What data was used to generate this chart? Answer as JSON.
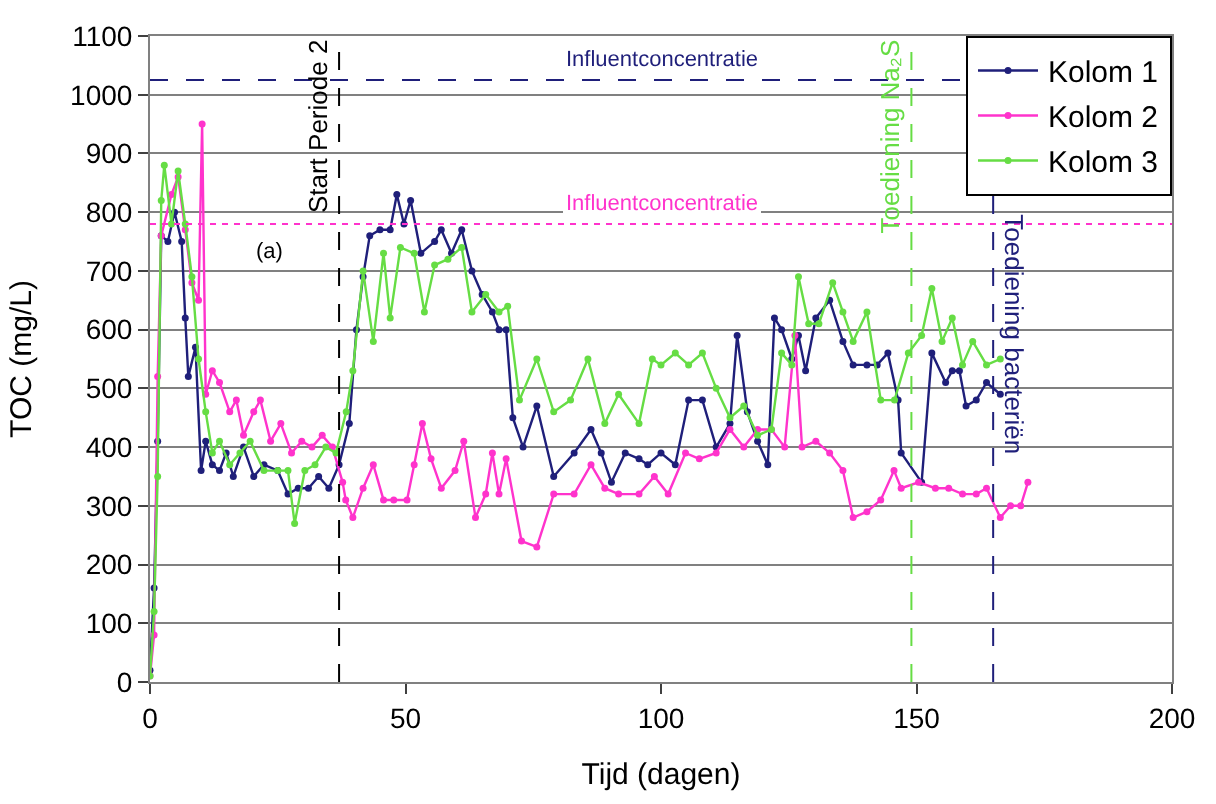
{
  "chart_data": {
    "type": "line",
    "xlabel": "Tijd (dagen)",
    "ylabel": "TOC (mg/L)",
    "xlim": [
      0,
      200
    ],
    "xticks": [
      0,
      50,
      100,
      150,
      200
    ],
    "ylim": [
      0,
      1100
    ],
    "yticks": [
      0,
      100,
      200,
      300,
      400,
      500,
      600,
      700,
      800,
      900,
      1000,
      1100
    ],
    "grid": "y",
    "legend": "top right",
    "marker": "circle",
    "line_style": "solid",
    "series": [
      {
        "name": "Kolom 1",
        "color": "#1f1f7a",
        "x": [
          0,
          0.8,
          1.5,
          2.2,
          3.5,
          4.8,
          6.2,
          6.9,
          7.5,
          8.9,
          10,
          10.9,
          12.2,
          13.6,
          14.9,
          16.3,
          18.3,
          20.3,
          22.3,
          25,
          27,
          29,
          31,
          33,
          35,
          37,
          39,
          40.4,
          41.7,
          43,
          45,
          47,
          48.3,
          49.7,
          51,
          53,
          55.7,
          57,
          59,
          61,
          63,
          65,
          67,
          68.3,
          69.7,
          71,
          73,
          75.7,
          79,
          83,
          86.3,
          88.3,
          90.3,
          93,
          95.7,
          97.4,
          100,
          102.8,
          105.4,
          108.1,
          110.8,
          113.5,
          114.9,
          116.9,
          118.9,
          120.9,
          122.2,
          123.6,
          125.6,
          126.9,
          128.3,
          130.3,
          133,
          135.6,
          137.6,
          140.3,
          142.3,
          144.4,
          146.4,
          147,
          151,
          153,
          155.7,
          157,
          158.4,
          159.7,
          161.7,
          163.7,
          166.4
        ],
        "values": [
          20,
          160,
          410,
          760,
          750,
          800,
          750,
          620,
          520,
          570,
          360,
          410,
          370,
          360,
          390,
          350,
          400,
          350,
          370,
          360,
          320,
          330,
          330,
          350,
          330,
          370,
          440,
          600,
          690,
          760,
          770,
          770,
          830,
          780,
          820,
          730,
          750,
          770,
          730,
          770,
          700,
          660,
          630,
          600,
          600,
          450,
          400,
          470,
          350,
          390,
          430,
          390,
          340,
          390,
          380,
          370,
          390,
          370,
          480,
          480,
          400,
          440,
          590,
          460,
          410,
          370,
          620,
          600,
          550,
          590,
          530,
          620,
          650,
          580,
          540,
          540,
          540,
          560,
          480,
          390,
          340,
          560,
          510,
          530,
          530,
          470,
          480,
          510,
          490
        ]
      },
      {
        "name": "Kolom 2",
        "color": "#ff33cc",
        "x": [
          0,
          0.8,
          1.5,
          2.2,
          4.2,
          5.5,
          6.9,
          8.2,
          9.5,
          10.2,
          10.9,
          12.2,
          13.6,
          15.6,
          16.9,
          18.3,
          20.3,
          21.6,
          23.6,
          25.6,
          27.7,
          29.7,
          31.7,
          33.7,
          35.7,
          37.7,
          38.3,
          39.7,
          41.7,
          43.7,
          45.7,
          47.7,
          50.3,
          51.7,
          53.3,
          55,
          57,
          59.7,
          61.4,
          63.7,
          65.7,
          67,
          68.3,
          69.7,
          72.7,
          75.7,
          79,
          83,
          86.3,
          89,
          91.7,
          95.7,
          98.7,
          101.4,
          104.8,
          107.5,
          110.8,
          113.5,
          116.2,
          118.9,
          121.6,
          124.2,
          126.2,
          127.6,
          130.3,
          133,
          135.6,
          137.6,
          140.3,
          143,
          145.6,
          147,
          150.4,
          153.7,
          156.3,
          159,
          161.7,
          163.7,
          166.4,
          168.4,
          170.4,
          171.8
        ],
        "values": [
          10,
          80,
          520,
          760,
          830,
          860,
          770,
          680,
          650,
          950,
          490,
          530,
          510,
          460,
          480,
          420,
          460,
          480,
          410,
          440,
          390,
          410,
          400,
          420,
          400,
          340,
          310,
          280,
          330,
          370,
          310,
          310,
          310,
          370,
          440,
          380,
          330,
          360,
          410,
          280,
          320,
          390,
          320,
          380,
          240,
          230,
          320,
          320,
          370,
          330,
          320,
          320,
          350,
          320,
          390,
          380,
          390,
          430,
          400,
          430,
          430,
          400,
          590,
          400,
          410,
          390,
          360,
          280,
          290,
          310,
          360,
          330,
          340,
          330,
          330,
          320,
          320,
          330,
          280,
          300,
          300,
          340
        ]
      },
      {
        "name": "Kolom 3",
        "color": "#66dd44",
        "x": [
          0,
          0.8,
          1.5,
          2.2,
          2.8,
          4.2,
          5.5,
          6.9,
          8.2,
          9.5,
          10.9,
          12.2,
          13.6,
          15.6,
          17.6,
          19.6,
          22.3,
          25,
          27,
          28.3,
          30.3,
          32.3,
          34.4,
          36.4,
          38.4,
          39.7,
          41.7,
          43.7,
          45.7,
          47,
          49,
          51.7,
          53.7,
          55.7,
          58.3,
          61,
          63,
          65.7,
          68.3,
          70,
          72.3,
          75.7,
          79,
          82.3,
          85.7,
          89,
          91.7,
          95.7,
          98.3,
          100,
          102.8,
          105.4,
          108.1,
          110.8,
          113.5,
          116.2,
          118.9,
          121.6,
          123.6,
          125.6,
          126.9,
          128.9,
          130.9,
          133.6,
          135.6,
          137.6,
          140.3,
          143,
          145.7,
          148.4,
          151,
          153,
          155,
          157,
          159,
          161,
          163.7,
          166.4
        ],
        "values": [
          10,
          120,
          350,
          820,
          880,
          780,
          870,
          780,
          690,
          550,
          460,
          390,
          410,
          370,
          390,
          410,
          360,
          360,
          360,
          270,
          360,
          370,
          400,
          390,
          460,
          530,
          700,
          580,
          730,
          620,
          740,
          730,
          630,
          710,
          720,
          740,
          630,
          660,
          630,
          640,
          480,
          550,
          460,
          480,
          550,
          440,
          490,
          440,
          550,
          540,
          560,
          540,
          560,
          500,
          450,
          470,
          420,
          430,
          560,
          540,
          690,
          610,
          610,
          680,
          630,
          580,
          630,
          480,
          480,
          560,
          590,
          670,
          580,
          620,
          540,
          580,
          540,
          550
        ]
      }
    ],
    "ref_lines": [
      {
        "axis": "x",
        "value": 37,
        "label": "Start Periode 2",
        "color": "#000000",
        "line_style": "dashed"
      },
      {
        "axis": "x",
        "value": 149,
        "label": "Toediening Na₂S",
        "color": "#66dd44",
        "line_style": "dashed"
      },
      {
        "axis": "x",
        "value": 165,
        "label": "Toediening bacteriën",
        "color": "#1f1f7a",
        "line_style": "dashed"
      },
      {
        "axis": "y",
        "value": 1025,
        "label": "Influentconcentratie",
        "color": "#1f1f7a",
        "line_style": "dashed"
      },
      {
        "axis": "y",
        "value": 780,
        "label": "Influentconcentratie",
        "color": "#ff33cc",
        "line_style": "dotted"
      }
    ],
    "annotations": [
      "(a)"
    ]
  }
}
